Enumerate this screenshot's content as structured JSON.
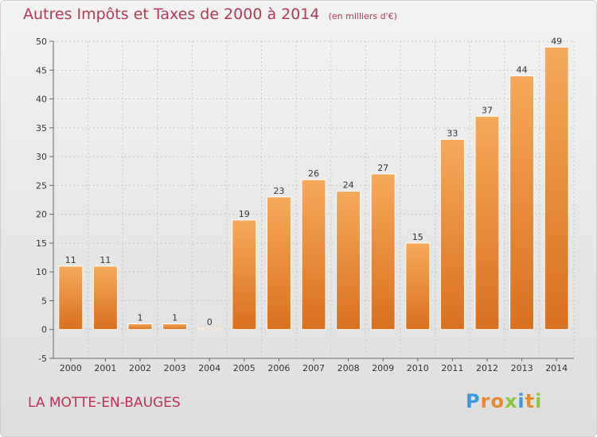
{
  "chart_data": {
    "type": "bar",
    "title": "Autres Impôts et Taxes de 2000 à 2014",
    "subtitle": "(en milliers d'€)",
    "categories": [
      "2000",
      "2001",
      "2002",
      "2003",
      "2004",
      "2005",
      "2006",
      "2007",
      "2008",
      "2009",
      "2010",
      "2011",
      "2012",
      "2013",
      "2014"
    ],
    "values": [
      11,
      11,
      1,
      1,
      0,
      19,
      23,
      26,
      24,
      27,
      15,
      33,
      37,
      44,
      49
    ],
    "ylim": [
      -5,
      50
    ],
    "yticks": [
      -5,
      0,
      5,
      10,
      15,
      20,
      25,
      30,
      35,
      40,
      45,
      50
    ],
    "grid": true,
    "bar_color": "#e8892f",
    "xlabel": "",
    "ylabel": ""
  },
  "footer": {
    "commune": "LA MOTTE-EN-BAUGES",
    "logo_text": "Proxiti",
    "logo_colors": [
      "#3a9ad9",
      "#e8892f",
      "#e8892f",
      "#8cc63f",
      "#3a9ad9",
      "#e8892f",
      "#8cc63f"
    ]
  },
  "colors": {
    "title": "#b33b52",
    "commune": "#c02f55"
  }
}
